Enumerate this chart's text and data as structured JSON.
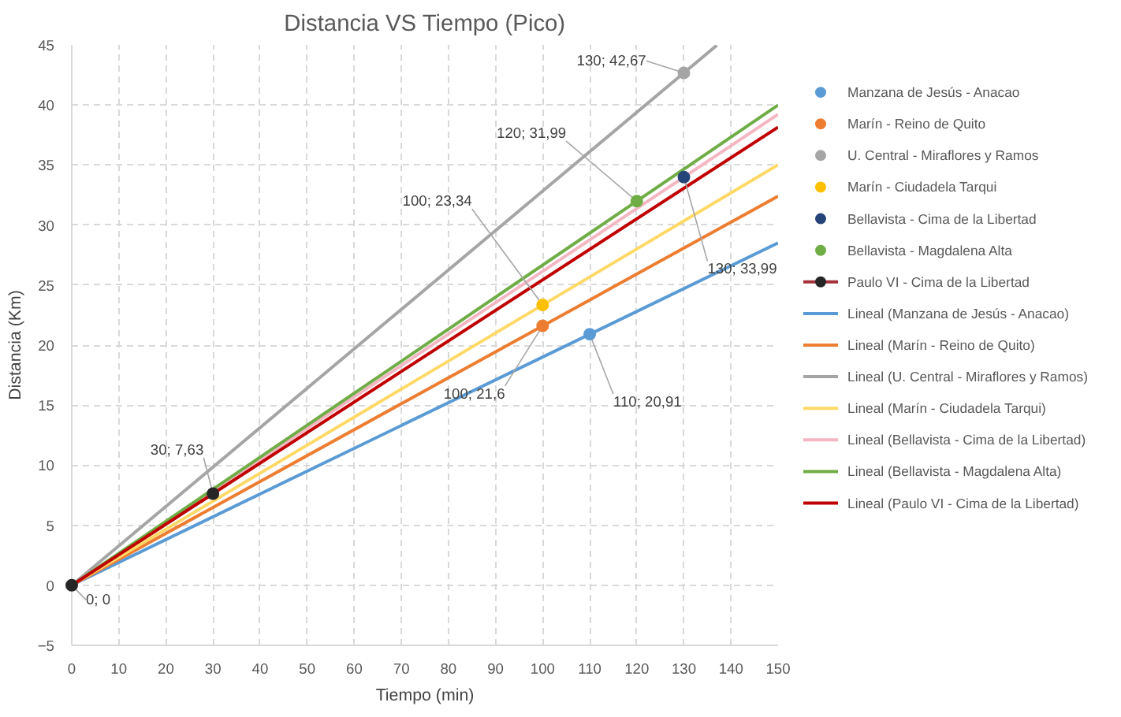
{
  "chart_data": {
    "type": "scatter",
    "title": "Distancia VS Tiempo (Pico)",
    "xlabel": "Tiempo (min)",
    "ylabel": "Distancia (Km)",
    "xlim": [
      0,
      150
    ],
    "ylim": [
      -5,
      45
    ],
    "xticks": [
      0,
      10,
      20,
      30,
      40,
      50,
      60,
      70,
      80,
      90,
      100,
      110,
      120,
      130,
      140,
      150
    ],
    "yticks": [
      -5,
      0,
      5,
      10,
      15,
      20,
      25,
      30,
      35,
      40,
      45
    ],
    "grid": true,
    "legend": "right",
    "marker": "circle",
    "series": [
      {
        "name": "Manzana de Jesús - Anacao",
        "color": "#5b9bd5",
        "x": [
          110
        ],
        "values": [
          20.91
        ]
      },
      {
        "name": "Marín - Reino de Quito",
        "color": "#ed7d31",
        "x": [
          100
        ],
        "values": [
          21.6
        ]
      },
      {
        "name": "U. Central - Miraflores y Ramos",
        "color": "#a5a5a5",
        "x": [
          130
        ],
        "values": [
          42.67
        ]
      },
      {
        "name": "Marín - Ciudadela Tarqui",
        "color": "#ffc000",
        "x": [
          100
        ],
        "values": [
          23.34
        ]
      },
      {
        "name": "Bellavista - Cima de la Libertad",
        "color": "#264478",
        "x": [
          130
        ],
        "values": [
          33.99
        ]
      },
      {
        "name": "Bellavista - Magdalena Alta",
        "color": "#70ad47",
        "x": [
          120
        ],
        "values": [
          31.99
        ]
      },
      {
        "name": "Paulo VI - Cima de la Libertad",
        "type": "line",
        "marker": "circle",
        "color": "#a5303a",
        "x": [
          0,
          30
        ],
        "values": [
          0,
          7.63
        ]
      },
      {
        "name": "Lineal (Manzana de Jesús - Anacao)",
        "type": "line",
        "marker": "none",
        "color": "#5b9bd5",
        "x": [
          0,
          150
        ],
        "values": [
          0,
          28.51
        ]
      },
      {
        "name": "Lineal (Marín - Reino de Quito)",
        "type": "line",
        "marker": "none",
        "color": "#ed7d31",
        "x": [
          0,
          150
        ],
        "values": [
          0,
          32.4
        ]
      },
      {
        "name": "Lineal (U. Central - Miraflores y Ramos)",
        "type": "line",
        "marker": "none",
        "color": "#a5a5a5",
        "x": [
          0,
          137
        ],
        "values": [
          0,
          44.97
        ]
      },
      {
        "name": "Lineal (Marín - Ciudadela Tarqui)",
        "type": "line",
        "marker": "none",
        "color": "#ffd966",
        "x": [
          0,
          150
        ],
        "values": [
          0,
          35.01
        ]
      },
      {
        "name": "Lineal (Bellavista - Cima de la Libertad)",
        "type": "line",
        "marker": "none",
        "color": "#f4b6c2",
        "x": [
          0,
          150
        ],
        "values": [
          0,
          39.22
        ]
      },
      {
        "name": "Lineal (Bellavista - Magdalena Alta)",
        "type": "line",
        "marker": "none",
        "color": "#70ad47",
        "x": [
          0,
          150
        ],
        "values": [
          0,
          39.99
        ]
      },
      {
        "name": "Lineal (Paulo VI - Cima de la Libertad)",
        "type": "line",
        "marker": "none",
        "color": "#c00000",
        "x": [
          0,
          150
        ],
        "values": [
          0,
          38.15
        ]
      }
    ],
    "annotations": [
      {
        "text": "0; 0",
        "x": 0,
        "y": 0
      },
      {
        "text": "30; 7,63",
        "x": 30,
        "y": 7.63
      },
      {
        "text": "100; 21,6",
        "x": 100,
        "y": 21.6
      },
      {
        "text": "100; 23,34",
        "x": 100,
        "y": 23.34
      },
      {
        "text": "110; 20,91",
        "x": 110,
        "y": 20.91
      },
      {
        "text": "120; 31,99",
        "x": 120,
        "y": 31.99
      },
      {
        "text": "130; 33,99",
        "x": 130,
        "y": 33.99
      },
      {
        "text": "130; 42,67",
        "x": 130,
        "y": 42.67
      }
    ]
  }
}
